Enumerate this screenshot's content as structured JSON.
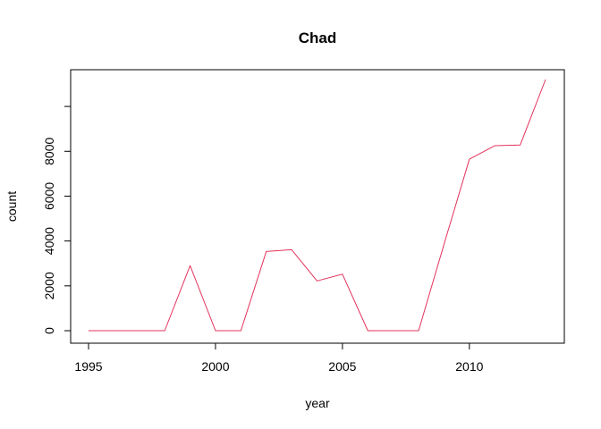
{
  "chart_data": {
    "type": "line",
    "title": "Chad",
    "xlabel": "year",
    "ylabel": "count",
    "x_ticks": [
      1995,
      2000,
      2005,
      2010
    ],
    "y_ticks": [
      0,
      2000,
      4000,
      6000,
      8000,
      10000
    ],
    "y_tick_labels": [
      "0",
      "2000",
      "4000",
      "6000",
      "8000",
      ""
    ],
    "xlim": [
      1995,
      2013
    ],
    "ylim": [
      0,
      11200
    ],
    "line_color": "#e3325b",
    "grid": false,
    "x": [
      1995,
      1996,
      1997,
      1998,
      1999,
      2000,
      2001,
      2002,
      2003,
      2004,
      2005,
      2006,
      2007,
      2008,
      2009,
      2010,
      2011,
      2012,
      2013
    ],
    "y": [
      0,
      0,
      0,
      0,
      2900,
      0,
      0,
      3530,
      3610,
      2220,
      2520,
      0,
      0,
      0,
      3850,
      7650,
      8250,
      8280,
      11200
    ]
  }
}
